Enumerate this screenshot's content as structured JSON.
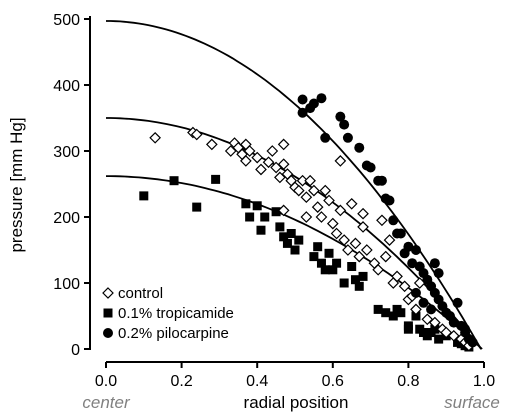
{
  "chart_data": {
    "type": "scatter",
    "xlabel": "radial position",
    "ylabel": "pressure [mm Hg]",
    "xlim": [
      0.0,
      1.0
    ],
    "ylim": [
      0,
      500
    ],
    "x_ticks": [
      "0.0",
      "0.2",
      "0.4",
      "0.6",
      "0.8",
      "1.0"
    ],
    "y_ticks": [
      "0",
      "100",
      "200",
      "300",
      "400",
      "500"
    ],
    "x_end_labels": {
      "left": "center",
      "right": "surface"
    },
    "legend_position": "bottom-left",
    "grid": false,
    "series": [
      {
        "name": "control",
        "marker": "open-diamond",
        "fit_curve": {
          "p0": 350,
          "x0": 0.993
        },
        "points": [
          [
            0.13,
            320
          ],
          [
            0.23,
            328
          ],
          [
            0.24,
            325
          ],
          [
            0.28,
            310
          ],
          [
            0.33,
            300
          ],
          [
            0.34,
            312
          ],
          [
            0.35,
            305
          ],
          [
            0.36,
            295
          ],
          [
            0.37,
            310
          ],
          [
            0.37,
            285
          ],
          [
            0.38,
            300
          ],
          [
            0.4,
            290
          ],
          [
            0.41,
            272
          ],
          [
            0.43,
            283
          ],
          [
            0.44,
            300
          ],
          [
            0.45,
            275
          ],
          [
            0.46,
            260
          ],
          [
            0.47,
            280
          ],
          [
            0.47,
            310
          ],
          [
            0.48,
            265
          ],
          [
            0.49,
            255
          ],
          [
            0.5,
            245
          ],
          [
            0.51,
            240
          ],
          [
            0.52,
            255
          ],
          [
            0.53,
            230
          ],
          [
            0.54,
            255
          ],
          [
            0.55,
            240
          ],
          [
            0.56,
            215
          ],
          [
            0.57,
            200
          ],
          [
            0.58,
            240
          ],
          [
            0.59,
            225
          ],
          [
            0.6,
            190
          ],
          [
            0.61,
            175
          ],
          [
            0.62,
            210
          ],
          [
            0.62,
            285
          ],
          [
            0.63,
            165
          ],
          [
            0.64,
            150
          ],
          [
            0.65,
            220
          ],
          [
            0.66,
            160
          ],
          [
            0.67,
            140
          ],
          [
            0.68,
            185
          ],
          [
            0.68,
            205
          ],
          [
            0.69,
            150
          ],
          [
            0.71,
            130
          ],
          [
            0.72,
            120
          ],
          [
            0.73,
            195
          ],
          [
            0.74,
            140
          ],
          [
            0.75,
            165
          ],
          [
            0.76,
            100
          ],
          [
            0.77,
            110
          ],
          [
            0.79,
            95
          ],
          [
            0.8,
            75
          ],
          [
            0.81,
            80
          ],
          [
            0.82,
            60
          ],
          [
            0.83,
            100
          ],
          [
            0.85,
            45
          ],
          [
            0.87,
            40
          ],
          [
            0.89,
            30
          ],
          [
            0.9,
            25
          ],
          [
            0.92,
            20
          ],
          [
            0.94,
            15
          ],
          [
            0.95,
            10
          ],
          [
            0.96,
            5
          ],
          [
            0.47,
            210
          ],
          [
            0.53,
            200
          ]
        ]
      },
      {
        "name": "0.1% tropicamide",
        "marker": "filled-square",
        "fit_curve": {
          "p0": 262,
          "x0": 0.995
        },
        "points": [
          [
            0.1,
            232
          ],
          [
            0.18,
            255
          ],
          [
            0.24,
            215
          ],
          [
            0.29,
            257
          ],
          [
            0.37,
            220
          ],
          [
            0.38,
            200
          ],
          [
            0.4,
            217
          ],
          [
            0.41,
            180
          ],
          [
            0.42,
            200
          ],
          [
            0.45,
            208
          ],
          [
            0.46,
            185
          ],
          [
            0.47,
            170
          ],
          [
            0.48,
            160
          ],
          [
            0.49,
            175
          ],
          [
            0.5,
            150
          ],
          [
            0.51,
            165
          ],
          [
            0.55,
            140
          ],
          [
            0.56,
            155
          ],
          [
            0.57,
            130
          ],
          [
            0.58,
            120
          ],
          [
            0.59,
            145
          ],
          [
            0.6,
            120
          ],
          [
            0.61,
            130
          ],
          [
            0.63,
            100
          ],
          [
            0.65,
            125
          ],
          [
            0.66,
            105
          ],
          [
            0.67,
            95
          ],
          [
            0.68,
            110
          ],
          [
            0.72,
            60
          ],
          [
            0.74,
            55
          ],
          [
            0.76,
            50
          ],
          [
            0.77,
            60
          ],
          [
            0.78,
            55
          ],
          [
            0.8,
            35
          ],
          [
            0.8,
            30
          ],
          [
            0.82,
            50
          ],
          [
            0.83,
            30
          ],
          [
            0.84,
            25
          ],
          [
            0.85,
            20
          ],
          [
            0.86,
            25
          ],
          [
            0.87,
            30
          ],
          [
            0.88,
            15
          ],
          [
            0.9,
            20
          ],
          [
            0.93,
            10
          ],
          [
            0.94,
            8
          ],
          [
            0.95,
            5
          ],
          [
            0.96,
            3
          ]
        ]
      },
      {
        "name": "0.2% pilocarpine",
        "marker": "filled-circle",
        "fit_curve": {
          "p0": 497,
          "x0": 0.992
        },
        "points": [
          [
            0.52,
            378
          ],
          [
            0.52,
            358
          ],
          [
            0.54,
            365
          ],
          [
            0.55,
            372
          ],
          [
            0.57,
            380
          ],
          [
            0.58,
            320
          ],
          [
            0.62,
            352
          ],
          [
            0.63,
            340
          ],
          [
            0.64,
            320
          ],
          [
            0.67,
            305
          ],
          [
            0.69,
            278
          ],
          [
            0.7,
            275
          ],
          [
            0.72,
            255
          ],
          [
            0.73,
            255
          ],
          [
            0.74,
            228
          ],
          [
            0.75,
            225
          ],
          [
            0.76,
            195
          ],
          [
            0.77,
            175
          ],
          [
            0.78,
            175
          ],
          [
            0.79,
            145
          ],
          [
            0.8,
            155
          ],
          [
            0.81,
            130
          ],
          [
            0.82,
            150
          ],
          [
            0.83,
            125
          ],
          [
            0.84,
            115
          ],
          [
            0.85,
            105
          ],
          [
            0.86,
            95
          ],
          [
            0.87,
            130
          ],
          [
            0.87,
            85
          ],
          [
            0.88,
            115
          ],
          [
            0.88,
            75
          ],
          [
            0.89,
            65
          ],
          [
            0.9,
            55
          ],
          [
            0.91,
            50
          ],
          [
            0.92,
            40
          ],
          [
            0.93,
            70
          ],
          [
            0.94,
            35
          ],
          [
            0.95,
            30
          ],
          [
            0.95,
            25
          ],
          [
            0.96,
            15
          ],
          [
            0.97,
            10
          ],
          [
            0.84,
            70
          ],
          [
            0.86,
            60
          ],
          [
            0.82,
            85
          ]
        ]
      }
    ]
  }
}
